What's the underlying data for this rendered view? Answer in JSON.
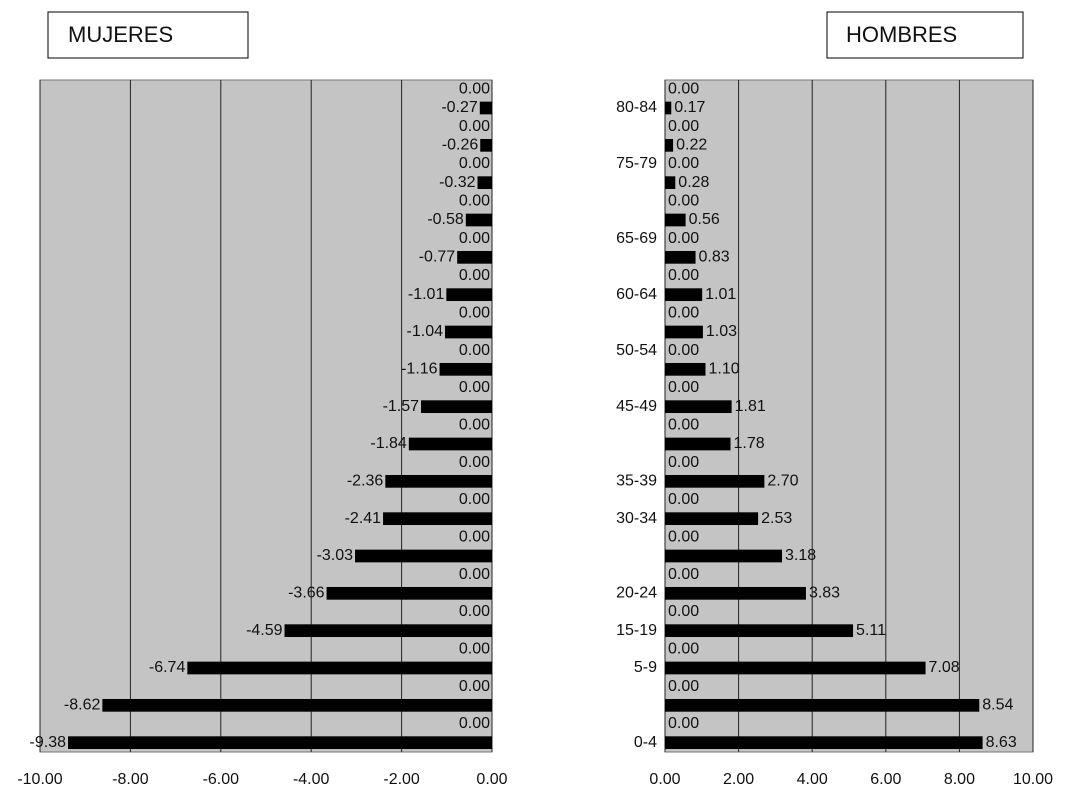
{
  "chart_data": [
    {
      "type": "bar",
      "orientation": "horizontal",
      "title": "MUJERES",
      "color": "#000000",
      "grid": true,
      "values": [
        0,
        -0.27,
        0,
        -0.26,
        0,
        -0.32,
        0,
        -0.58,
        0,
        -0.77,
        0,
        -1.01,
        0,
        -1.04,
        0,
        -1.16,
        0,
        -1.57,
        0,
        -1.84,
        0,
        -2.36,
        0,
        -2.41,
        0,
        -3.03,
        0,
        -3.66,
        0,
        -4.59,
        0,
        -6.74,
        0,
        -8.62,
        0,
        -9.38
      ],
      "value_labels": [
        "0.00",
        "-0.27",
        "0.00",
        "-0.26",
        "0.00",
        "-0.32",
        "0.00",
        "-0.58",
        "0.00",
        "-0.77",
        "0.00",
        "-1.01",
        "0.00",
        "-1.04",
        "0.00",
        "-1.16",
        "0.00",
        "-1.57",
        "0.00",
        "-1.84",
        "0.00",
        "-2.36",
        "0.00",
        "-2.41",
        "0.00",
        "-3.03",
        "0.00",
        "-3.66",
        "0.00",
        "-4.59",
        "0.00",
        "-6.74",
        "0.00",
        "-8.62",
        "0.00",
        "-9.38"
      ],
      "xlim": [
        -10,
        0
      ],
      "xticks": [
        {
          "value": -10,
          "label": "-10.00"
        },
        {
          "value": -8,
          "label": "-8.00"
        },
        {
          "value": -6,
          "label": "-6.00"
        },
        {
          "value": -4,
          "label": "-4.00"
        },
        {
          "value": -2,
          "label": "-2.00"
        },
        {
          "value": 0,
          "label": "0.00"
        }
      ]
    },
    {
      "type": "bar",
      "orientation": "horizontal",
      "title": "HOMBRES",
      "color": "#000000",
      "grid": true,
      "categories": [
        null,
        "80-84",
        null,
        null,
        "75-79",
        null,
        null,
        null,
        "65-69",
        null,
        null,
        "60-64",
        null,
        null,
        "50-54",
        null,
        null,
        "45-49",
        null,
        null,
        null,
        "35-39",
        null,
        "30-34",
        null,
        null,
        null,
        "20-24",
        null,
        "15-19",
        null,
        "5-9",
        null,
        null,
        null,
        "0-4"
      ],
      "values": [
        0,
        0.17,
        0,
        0.22,
        0,
        0.28,
        0,
        0.56,
        0,
        0.83,
        0,
        1.01,
        0,
        1.03,
        0,
        1.1,
        0,
        1.81,
        0,
        1.78,
        0,
        2.7,
        0,
        2.53,
        0,
        3.18,
        0,
        3.83,
        0,
        5.11,
        0,
        7.08,
        0,
        8.54,
        0,
        8.63
      ],
      "value_labels": [
        "0.00",
        "0.17",
        "0.00",
        "0.22",
        "0.00",
        "0.28",
        "0.00",
        "0.56",
        "0.00",
        "0.83",
        "0.00",
        "1.01",
        "0.00",
        "1.03",
        "0.00",
        "1.10",
        "0.00",
        "1.81",
        "0.00",
        "1.78",
        "0.00",
        "2.70",
        "0.00",
        "2.53",
        "0.00",
        "3.18",
        "0.00",
        "3.83",
        "0.00",
        "5.11",
        "0.00",
        "7.08",
        "0.00",
        "8.54",
        "0.00",
        "8.63"
      ],
      "xlim": [
        0,
        10
      ],
      "xticks": [
        {
          "value": 0,
          "label": "0.00"
        },
        {
          "value": 2,
          "label": "2.00"
        },
        {
          "value": 4,
          "label": "4.00"
        },
        {
          "value": 6,
          "label": "6.00"
        },
        {
          "value": 8,
          "label": "8.00"
        },
        {
          "value": 10,
          "label": "10.00"
        }
      ]
    }
  ]
}
